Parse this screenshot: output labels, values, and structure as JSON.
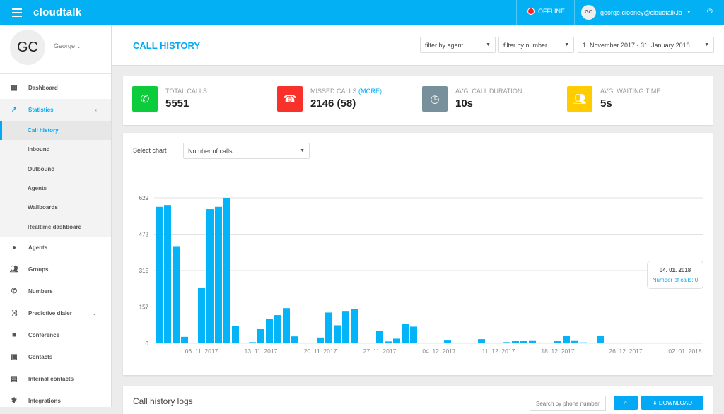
{
  "header": {
    "app_name": "cloudtalk",
    "status": "OFFLINE",
    "user_initials": "GC",
    "user_email": "george.clooney@cloudtalk.io",
    "status_color": "#ff2222",
    "brand_color": "#03b0f4"
  },
  "profile": {
    "initials": "GC",
    "name": "George"
  },
  "sidebar": {
    "items": [
      {
        "label": "Dashboard",
        "icon": "dashboard-icon"
      },
      {
        "label": "Statistics",
        "icon": "trending-icon"
      },
      {
        "label": "Agents",
        "icon": "person-icon"
      },
      {
        "label": "Groups",
        "icon": "group-icon"
      },
      {
        "label": "Numbers",
        "icon": "phone-icon"
      },
      {
        "label": "Predictive dialer",
        "icon": "shuffle-icon"
      },
      {
        "label": "Conference",
        "icon": "chat-icon"
      },
      {
        "label": "Contacts",
        "icon": "contacts-icon"
      },
      {
        "label": "Internal contacts",
        "icon": "contact-card-icon"
      },
      {
        "label": "Integrations",
        "icon": "puzzle-icon"
      }
    ],
    "sub_items": [
      "Call history",
      "Inbound",
      "Outbound",
      "Agents",
      "Wallboards",
      "Realtime dashboard"
    ]
  },
  "page": {
    "title": "CALL HISTORY",
    "filter_agent": "filter by agent",
    "filter_number": "filter by number",
    "date_range": "1. November 2017 - 31. January 2018"
  },
  "stats": [
    {
      "label": "TOTAL CALLS",
      "value": "5551",
      "color": "#0ccc3c",
      "icon": "phone-icon"
    },
    {
      "label": "MISSED CALLS",
      "more": "(MORE)",
      "value": "2146 (58)",
      "color": "#f8322a",
      "icon": "missed-call-icon"
    },
    {
      "label": "AVG. CALL DURATION",
      "value": "10s",
      "color": "#78909c",
      "icon": "clock-icon"
    },
    {
      "label": "AVG. WAITING TIME",
      "value": "5s",
      "color": "#ffcc00",
      "icon": "people-icon"
    }
  ],
  "chart_select": {
    "label": "Select chart",
    "value": "Number of calls"
  },
  "tooltip": {
    "date": "04. 01. 2018",
    "text": "Number of calls: 0"
  },
  "chart_data": {
    "type": "bar",
    "series_name": "Number of calls",
    "start_date": "01. 11. 2017",
    "end_date": "04. 01. 2018",
    "values": [
      590,
      598,
      420,
      28,
      0,
      240,
      580,
      590,
      629,
      75,
      0,
      5,
      62,
      105,
      122,
      152,
      30,
      0,
      0,
      25,
      133,
      78,
      140,
      148,
      2,
      3,
      55,
      8,
      20,
      83,
      72,
      0,
      0,
      0,
      15,
      0,
      0,
      0,
      18,
      0,
      0,
      5,
      10,
      12,
      13,
      3,
      0,
      10,
      33,
      13,
      4,
      0,
      32,
      0,
      0,
      0,
      0,
      0,
      0,
      0,
      0,
      0,
      0,
      0,
      0
    ],
    "ylim": [
      0,
      629
    ],
    "yticks": [
      "0",
      "157",
      "315",
      "472",
      "629"
    ],
    "xticks": [
      {
        "day": 5,
        "label": "06. 11. 2017"
      },
      {
        "day": 12,
        "label": "13. 11. 2017"
      },
      {
        "day": 19,
        "label": "20. 11. 2017"
      },
      {
        "day": 26,
        "label": "27. 11. 2017"
      },
      {
        "day": 33,
        "label": "04. 12. 2017"
      },
      {
        "day": 40,
        "label": "11. 12. 2017"
      },
      {
        "day": 47,
        "label": "18. 12. 2017"
      },
      {
        "day": 55,
        "label": "26. 12. 2017"
      },
      {
        "day": 62,
        "label": "02. 01. 2018"
      }
    ],
    "grid": true,
    "bar_color": "#03b4f8"
  },
  "logs": {
    "title": "Call history logs",
    "search_placeholder": "Search by phone number",
    "download": "DOWNLOAD"
  }
}
